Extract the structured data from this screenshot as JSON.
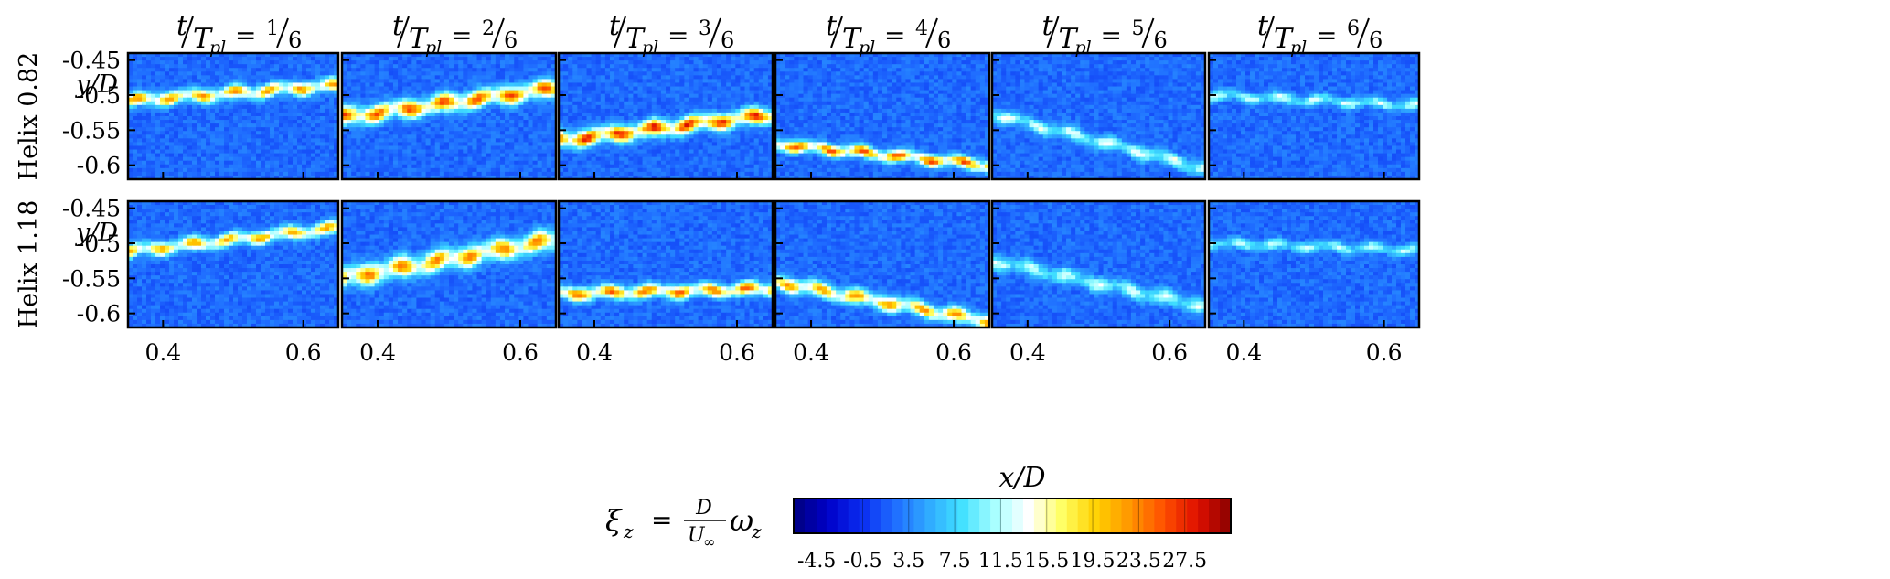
{
  "chart_data": {
    "type": "heatmap",
    "columns": [
      {
        "num": "t",
        "den": "T",
        "den_sub": "pl",
        "frac_num": "1",
        "frac_den": "6"
      },
      {
        "num": "t",
        "den": "T",
        "den_sub": "pl",
        "frac_num": "2",
        "frac_den": "6"
      },
      {
        "num": "t",
        "den": "T",
        "den_sub": "pl",
        "frac_num": "3",
        "frac_den": "6"
      },
      {
        "num": "t",
        "den": "T",
        "den_sub": "pl",
        "frac_num": "4",
        "frac_den": "6"
      },
      {
        "num": "t",
        "den": "T",
        "den_sub": "pl",
        "frac_num": "5",
        "frac_den": "6"
      },
      {
        "num": "t",
        "den": "T",
        "den_sub": "pl",
        "frac_num": "6",
        "frac_den": "6"
      }
    ],
    "column_equals": "=",
    "rows": [
      {
        "name": "Helix 0.82"
      },
      {
        "name": "Helix 1.18"
      }
    ],
    "ylabel": "y/D",
    "xlabel": "x/D",
    "xlim": [
      0.35,
      0.65
    ],
    "ylim": [
      -0.62,
      -0.44
    ],
    "yticks": [
      -0.45,
      -0.5,
      -0.55,
      -0.6
    ],
    "ytick_labels": [
      "-0.45",
      "-0.5",
      "-0.55",
      "-0.6"
    ],
    "xticks": [
      0.4,
      0.6
    ],
    "xtick_labels": [
      "0.4",
      "0.6"
    ],
    "colorbar": {
      "label_lhs": "ξ",
      "label_lhs_sub": "z",
      "label_eq": "=",
      "label_frac_num": "D",
      "label_frac_den": "U",
      "label_frac_den_sub": "∞",
      "label_rhs": "ω",
      "label_rhs_sub": "z",
      "min": -6.5,
      "max": 31.5,
      "tick_values": [
        -4.5,
        -0.5,
        3.5,
        7.5,
        11.5,
        15.5,
        19.5,
        23.5,
        27.5
      ],
      "tick_labels": [
        "-4.5",
        "-0.5",
        "3.5",
        "7.5",
        "11.5",
        "15.5",
        "19.5",
        "23.5",
        "27.5"
      ],
      "colors": [
        "#00007f",
        "#0000c8",
        "#0a2cf0",
        "#1f6cff",
        "#2fa8ff",
        "#40e0ff",
        "#a8ffff",
        "#ffffff",
        "#ffff60",
        "#ffd000",
        "#ff9600",
        "#ff5000",
        "#e01000",
        "#8a0000"
      ]
    },
    "bands": [
      {
        "row": 0,
        "col": 0,
        "x": [
          0.35,
          0.65
        ],
        "y": [
          -0.508,
          -0.486
        ],
        "peak": 21,
        "width": 0.009
      },
      {
        "row": 0,
        "col": 1,
        "x": [
          0.35,
          0.65
        ],
        "y": [
          -0.532,
          -0.49
        ],
        "peak": 24,
        "width": 0.012
      },
      {
        "row": 0,
        "col": 2,
        "x": [
          0.35,
          0.65
        ],
        "y": [
          -0.565,
          -0.528
        ],
        "peak": 26,
        "width": 0.011
      },
      {
        "row": 0,
        "col": 3,
        "x": [
          0.35,
          0.65
        ],
        "y": [
          -0.57,
          -0.6
        ],
        "peak": 24,
        "width": 0.008
      },
      {
        "row": 0,
        "col": 4,
        "x": [
          0.35,
          0.65
        ],
        "y": [
          -0.527,
          -0.605
        ],
        "peak": 12,
        "width": 0.009
      },
      {
        "row": 0,
        "col": 5,
        "x": [
          0.35,
          0.65
        ],
        "y": [
          -0.5,
          -0.515
        ],
        "peak": 11,
        "width": 0.007
      },
      {
        "row": 1,
        "col": 0,
        "x": [
          0.35,
          0.65
        ],
        "y": [
          -0.512,
          -0.478
        ],
        "peak": 20,
        "width": 0.009
      },
      {
        "row": 1,
        "col": 1,
        "x": [
          0.35,
          0.65
        ],
        "y": [
          -0.55,
          -0.495
        ],
        "peak": 22,
        "width": 0.014
      },
      {
        "row": 1,
        "col": 2,
        "x": [
          0.35,
          0.65
        ],
        "y": [
          -0.572,
          -0.565
        ],
        "peak": 23,
        "width": 0.009
      },
      {
        "row": 1,
        "col": 3,
        "x": [
          0.35,
          0.65
        ],
        "y": [
          -0.555,
          -0.612
        ],
        "peak": 21,
        "width": 0.01
      },
      {
        "row": 1,
        "col": 4,
        "x": [
          0.35,
          0.65
        ],
        "y": [
          -0.525,
          -0.59
        ],
        "peak": 11,
        "width": 0.01
      },
      {
        "row": 1,
        "col": 5,
        "x": [
          0.35,
          0.65
        ],
        "y": [
          -0.5,
          -0.51
        ],
        "peak": 10,
        "width": 0.007
      }
    ],
    "background_level": 2.2
  }
}
